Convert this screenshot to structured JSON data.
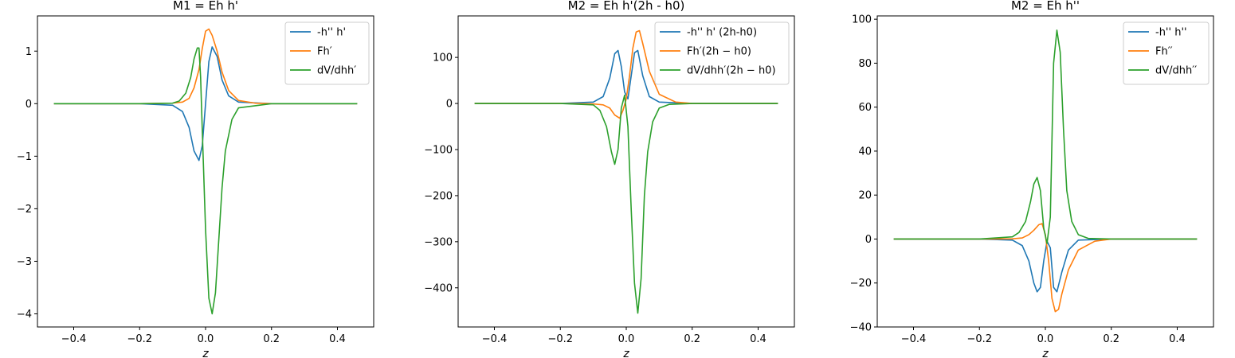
{
  "colors": {
    "blue": "#1f77b4",
    "orange": "#ff7f0e",
    "green": "#2ca02c"
  },
  "chart_data": [
    {
      "type": "line",
      "title": "M1 = Eh h'",
      "xlabel": "z",
      "ylabel": "",
      "xlim": [
        -0.51,
        0.51
      ],
      "ylim": [
        -4.25,
        1.67
      ],
      "xticks": [
        -0.4,
        -0.2,
        0.0,
        0.2,
        0.4
      ],
      "xtick_labels": [
        "−0.4",
        "−0.2",
        "0.0",
        "0.2",
        "0.4"
      ],
      "yticks": [
        -4,
        -3,
        -2,
        -1,
        0,
        1
      ],
      "ytick_labels": [
        "−4",
        "−3",
        "−2",
        "−1",
        "0",
        "1"
      ],
      "legend": "top-right",
      "series": [
        {
          "name": "-h'' h'",
          "color": "#1f77b4",
          "x": [
            -0.46,
            -0.2,
            -0.1,
            -0.07,
            -0.05,
            -0.035,
            -0.02,
            -0.01,
            0.0,
            0.01,
            0.02,
            0.035,
            0.05,
            0.07,
            0.1,
            0.2,
            0.46
          ],
          "y": [
            0,
            0,
            -0.03,
            -0.15,
            -0.45,
            -0.9,
            -1.08,
            -0.8,
            0.0,
            0.8,
            1.08,
            0.9,
            0.45,
            0.15,
            0.03,
            0,
            0
          ]
        },
        {
          "name": "Fh′",
          "color": "#ff7f0e",
          "x": [
            -0.46,
            -0.2,
            -0.1,
            -0.07,
            -0.05,
            -0.035,
            -0.02,
            -0.01,
            0.0,
            0.01,
            0.02,
            0.035,
            0.05,
            0.07,
            0.1,
            0.15,
            0.2,
            0.46
          ],
          "y": [
            0,
            0,
            0.01,
            0.03,
            0.1,
            0.3,
            0.65,
            1.05,
            1.38,
            1.42,
            1.3,
            1.0,
            0.6,
            0.25,
            0.06,
            0.01,
            0,
            0
          ]
        },
        {
          "name": "dV/dhh′",
          "color": "#2ca02c",
          "x": [
            -0.46,
            -0.2,
            -0.1,
            -0.08,
            -0.06,
            -0.045,
            -0.035,
            -0.025,
            -0.02,
            -0.015,
            -0.01,
            0.0,
            0.01,
            0.02,
            0.03,
            0.04,
            0.05,
            0.06,
            0.08,
            0.1,
            0.2,
            0.46
          ],
          "y": [
            0,
            0,
            0.01,
            0.05,
            0.2,
            0.5,
            0.85,
            1.06,
            1.06,
            0.5,
            -0.5,
            -2.4,
            -3.7,
            -4.0,
            -3.6,
            -2.6,
            -1.6,
            -0.9,
            -0.3,
            -0.08,
            0,
            0
          ]
        }
      ]
    },
    {
      "type": "line",
      "title": "M2 = Eh h'(2h - h0)",
      "xlabel": "z",
      "ylabel": "",
      "xlim": [
        -0.51,
        0.51
      ],
      "ylim": [
        -485,
        190
      ],
      "xticks": [
        -0.4,
        -0.2,
        0.0,
        0.2,
        0.4
      ],
      "xtick_labels": [
        "−0.4",
        "−0.2",
        "0.0",
        "0.2",
        "0.4"
      ],
      "yticks": [
        -400,
        -300,
        -200,
        -100,
        0,
        100
      ],
      "ytick_labels": [
        "−400",
        "−300",
        "−200",
        "−100",
        "0",
        "100"
      ],
      "legend": "top-right",
      "series": [
        {
          "name": "-h'' h' (2h-h0)",
          "color": "#1f77b4",
          "x": [
            -0.46,
            -0.2,
            -0.1,
            -0.07,
            -0.05,
            -0.035,
            -0.025,
            -0.015,
            -0.005,
            0.005,
            0.015,
            0.025,
            0.035,
            0.05,
            0.07,
            0.1,
            0.2,
            0.46
          ],
          "y": [
            0,
            0,
            3,
            15,
            55,
            108,
            115,
            80,
            25,
            10,
            60,
            110,
            115,
            60,
            15,
            3,
            0,
            0
          ]
        },
        {
          "name": "Fh′(2h − h0)",
          "color": "#ff7f0e",
          "x": [
            -0.46,
            -0.2,
            -0.1,
            -0.07,
            -0.05,
            -0.035,
            -0.02,
            -0.01,
            0.0,
            0.01,
            0.02,
            0.03,
            0.04,
            0.05,
            0.07,
            0.1,
            0.15,
            0.2,
            0.46
          ],
          "y": [
            0,
            0,
            -1,
            -3,
            -10,
            -25,
            -32,
            -15,
            10,
            60,
            120,
            155,
            158,
            130,
            70,
            20,
            3,
            0,
            0
          ]
        },
        {
          "name": "dV/dhh′(2h − h0)",
          "color": "#2ca02c",
          "x": [
            -0.46,
            -0.2,
            -0.1,
            -0.08,
            -0.06,
            -0.045,
            -0.035,
            -0.025,
            -0.015,
            -0.005,
            0.005,
            0.015,
            0.025,
            0.035,
            0.045,
            0.055,
            0.065,
            0.08,
            0.1,
            0.13,
            0.2,
            0.46
          ],
          "y": [
            0,
            0,
            -3,
            -15,
            -50,
            -105,
            -132,
            -100,
            -10,
            18,
            -50,
            -230,
            -390,
            -455,
            -380,
            -200,
            -105,
            -40,
            -10,
            -2,
            0,
            0
          ]
        }
      ]
    },
    {
      "type": "line",
      "title": "M2 = Eh h''",
      "xlabel": "z",
      "ylabel": "",
      "xlim": [
        -0.51,
        0.51
      ],
      "ylim": [
        -40,
        101.5
      ],
      "xticks": [
        -0.4,
        -0.2,
        0.0,
        0.2,
        0.4
      ],
      "xtick_labels": [
        "−0.4",
        "−0.2",
        "0.0",
        "0.2",
        "0.4"
      ],
      "yticks": [
        -40,
        -20,
        0,
        20,
        40,
        60,
        80,
        100
      ],
      "ytick_labels": [
        "−40",
        "−20",
        "0",
        "20",
        "40",
        "60",
        "80",
        "100"
      ],
      "legend": "top-right",
      "series": [
        {
          "name": "-h'' h''",
          "color": "#1f77b4",
          "x": [
            -0.46,
            -0.2,
            -0.1,
            -0.07,
            -0.05,
            -0.035,
            -0.025,
            -0.015,
            -0.005,
            0.005,
            0.015,
            0.025,
            0.035,
            0.05,
            0.07,
            0.1,
            0.2,
            0.46
          ],
          "y": [
            0,
            0,
            -0.5,
            -3,
            -10,
            -20,
            -24,
            -22,
            -10,
            -1,
            -4,
            -22,
            -24,
            -15,
            -5,
            -0.5,
            0,
            0
          ]
        },
        {
          "name": "Fh′′",
          "color": "#ff7f0e",
          "x": [
            -0.46,
            -0.2,
            -0.1,
            -0.07,
            -0.05,
            -0.035,
            -0.02,
            -0.01,
            0.0,
            0.01,
            0.02,
            0.03,
            0.04,
            0.05,
            0.07,
            0.1,
            0.15,
            0.2,
            0.46
          ],
          "y": [
            0,
            0,
            0.1,
            0.5,
            2,
            4,
            6.5,
            7,
            2,
            -10,
            -27,
            -33,
            -32,
            -25,
            -14,
            -5,
            -1,
            0,
            0
          ]
        },
        {
          "name": "dV/dhh′′",
          "color": "#2ca02c",
          "x": [
            -0.46,
            -0.2,
            -0.1,
            -0.08,
            -0.06,
            -0.045,
            -0.035,
            -0.025,
            -0.015,
            -0.005,
            0.005,
            0.015,
            0.025,
            0.035,
            0.045,
            0.055,
            0.065,
            0.08,
            0.1,
            0.13,
            0.2,
            0.46
          ],
          "y": [
            0,
            0,
            1,
            3,
            8,
            17,
            25,
            28,
            22,
            5,
            -2,
            10,
            80,
            95,
            85,
            50,
            22,
            8,
            2,
            0.3,
            0,
            0
          ]
        }
      ]
    }
  ]
}
